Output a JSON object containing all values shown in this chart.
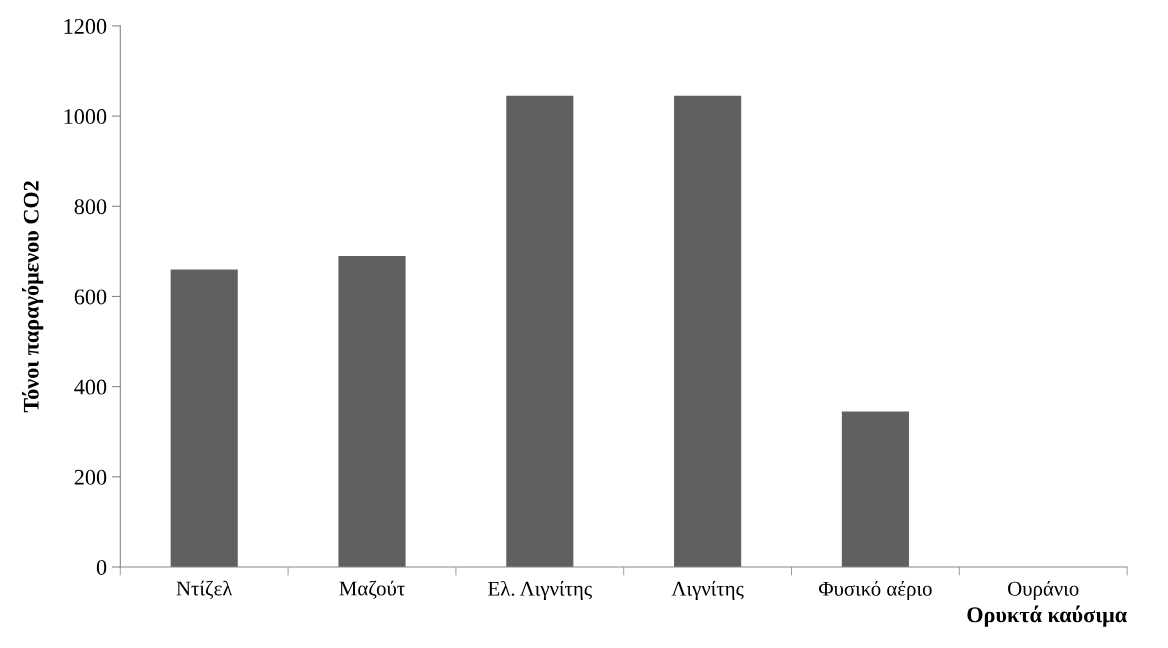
{
  "chart_data": {
    "type": "bar",
    "xlabel": "Ορυκτά καύσιμα",
    "ylabel": "Τόνοι παραγόμενου CO2",
    "categories": [
      "Ντίζελ",
      "Μαζούτ",
      "Ελ. Λιγνίτης",
      "Λιγνίτης",
      "Φυσικό αέριο",
      "Ουράνιο"
    ],
    "values": [
      660,
      690,
      1045,
      1045,
      345,
      0
    ],
    "color": "#606060",
    "ylim": [
      0,
      1200
    ],
    "yticks": [
      0,
      200,
      400,
      600,
      800,
      1000,
      1200
    ],
    "grid": false,
    "legend": false
  }
}
